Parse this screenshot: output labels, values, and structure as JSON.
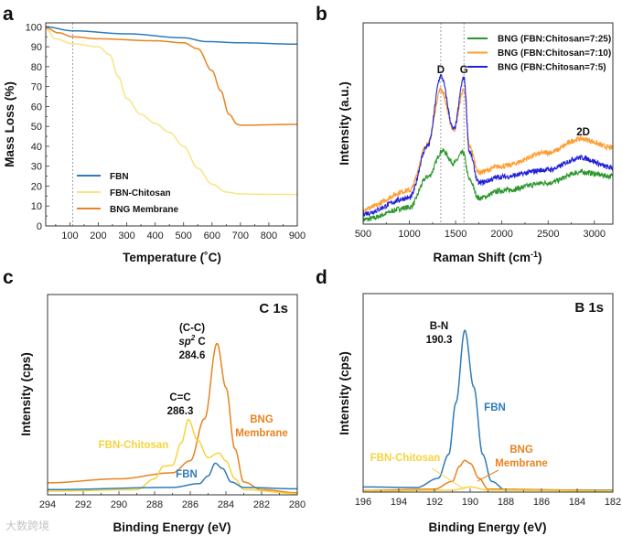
{
  "watermark": "大数跨境",
  "colors": {
    "fbn": "#2e7cb9",
    "fbn_chitosan_a": "#f7e582",
    "fbn_chitosan": "#f6d43c",
    "bng": "#e9831f",
    "raman_green": "#2b962b",
    "raman_orange": "#ff9c2f",
    "raman_blue": "#2121d8",
    "text": "#111111"
  },
  "chart_data": [
    {
      "id": "a",
      "panel_label": "a",
      "type": "line",
      "xlabel": "Temperature (˚C)",
      "ylabel": "Mass Loss (%)",
      "xlim": [
        15,
        900
      ],
      "ylim": [
        0,
        102
      ],
      "xticks": [
        100,
        200,
        300,
        400,
        500,
        600,
        700,
        800,
        900
      ],
      "yticks": [
        0,
        10,
        20,
        30,
        40,
        50,
        60,
        70,
        80,
        90,
        100
      ],
      "ref_lines_x": [
        110
      ],
      "legend_position": "bottom-left",
      "series": [
        {
          "name": "FBN",
          "color_key": "fbn",
          "points": [
            [
              15,
              100
            ],
            [
              110,
              98
            ],
            [
              300,
              96.5
            ],
            [
              500,
              94.5
            ],
            [
              580,
              92.6
            ],
            [
              700,
              92
            ],
            [
              900,
              91.3
            ]
          ]
        },
        {
          "name": "FBN-Chitosan",
          "color_key": "fbn_chitosan_a",
          "points": [
            [
              15,
              99
            ],
            [
              50,
              94
            ],
            [
              110,
              91.5
            ],
            [
              200,
              90
            ],
            [
              240,
              86
            ],
            [
              270,
              75
            ],
            [
              300,
              64
            ],
            [
              350,
              56
            ],
            [
              400,
              51.5
            ],
            [
              450,
              47
            ],
            [
              500,
              40
            ],
            [
              550,
              29
            ],
            [
              600,
              21
            ],
            [
              650,
              17
            ],
            [
              700,
              16
            ],
            [
              900,
              15.8
            ]
          ]
        },
        {
          "name": "BNG Membrane",
          "color_key": "bng",
          "points": [
            [
              15,
              99.5
            ],
            [
              60,
              97
            ],
            [
              110,
              95
            ],
            [
              200,
              94
            ],
            [
              400,
              93
            ],
            [
              500,
              92
            ],
            [
              550,
              89
            ],
            [
              600,
              78
            ],
            [
              630,
              68
            ],
            [
              660,
              56
            ],
            [
              690,
              51
            ],
            [
              700,
              50.6
            ],
            [
              900,
              51
            ]
          ]
        }
      ]
    },
    {
      "id": "b",
      "panel_label": "b",
      "type": "line",
      "xlabel": "Raman Shift (cm",
      "xlabel_sup": "-1",
      "xlabel_end": ")",
      "ylabel": "Intensity (a.u.)",
      "xlim": [
        500,
        3200
      ],
      "ylim": [
        0,
        100
      ],
      "xticks": [
        500,
        1000,
        1500,
        2000,
        2500,
        3000
      ],
      "ref_lines_x": [
        1340,
        1590
      ],
      "legend_position": "top-right",
      "annotations": [
        {
          "text": "D",
          "x": 1340
        },
        {
          "text": "G",
          "x": 1590
        },
        {
          "text": "2D",
          "x": 2880
        }
      ],
      "series": [
        {
          "name": "BNG (FBN:Chitosan=7:25)",
          "color_key": "raman_green",
          "points": [
            [
              500,
              2.3
            ],
            [
              1000,
              8.3
            ],
            [
              1200,
              23.5
            ],
            [
              1360,
              36.4
            ],
            [
              1480,
              30.3
            ],
            [
              1580,
              35.6
            ],
            [
              1650,
              22
            ],
            [
              1750,
              12.9
            ],
            [
              2000,
              16.7
            ],
            [
              2500,
              20.5
            ],
            [
              2850,
              25.8
            ],
            [
              3200,
              23.8
            ]
          ]
        },
        {
          "name": "BNG (FBN:Chitosan=7:10)",
          "color_key": "raman_orange",
          "points": [
            [
              500,
              7.6
            ],
            [
              1000,
              16.7
            ],
            [
              1200,
              40
            ],
            [
              1340,
              67
            ],
            [
              1480,
              47
            ],
            [
              1590,
              67
            ],
            [
              1650,
              38.6
            ],
            [
              1750,
              25.8
            ],
            [
              2000,
              28.8
            ],
            [
              2500,
              35.6
            ],
            [
              2850,
              42.4
            ],
            [
              3200,
              37.9
            ]
          ]
        },
        {
          "name": "BNG (FBN:Chitosan=7:5)",
          "color_key": "raman_blue",
          "points": [
            [
              500,
              5.3
            ],
            [
              1000,
              13
            ],
            [
              1200,
              39
            ],
            [
              1340,
              73.5
            ],
            [
              1480,
              47
            ],
            [
              1590,
              72.7
            ],
            [
              1650,
              35.6
            ],
            [
              1750,
              20.5
            ],
            [
              2000,
              23.5
            ],
            [
              2500,
              27
            ],
            [
              2850,
              33
            ],
            [
              3200,
              28
            ]
          ]
        }
      ]
    },
    {
      "id": "c",
      "panel_label": "c",
      "type": "line",
      "title": "C 1s",
      "xlabel": "Binding Energy (eV)",
      "ylabel": "Intensity (cps)",
      "xlim": [
        294,
        280
      ],
      "ylim": [
        0,
        100
      ],
      "xticks": [
        294,
        292,
        290,
        288,
        286,
        284,
        282,
        280
      ],
      "annotations": [
        {
          "lines": [
            "(C-C)"
          ]
        },
        {
          "sp2": {
            "italic": "sp",
            "sup": "2",
            "rest": " C"
          }
        },
        {
          "lines": [
            "284.6"
          ]
        },
        {
          "lines": [
            "C=C",
            "286.3"
          ]
        }
      ],
      "series": [
        {
          "name": "BNG Membrane",
          "label_lines": [
            "BNG",
            "Membrane"
          ],
          "color_key": "bng",
          "points": [
            [
              294,
              6
            ],
            [
              290,
              8
            ],
            [
              287,
              11
            ],
            [
              286,
              17
            ],
            [
              285.2,
              38
            ],
            [
              284.5,
              75.6
            ],
            [
              284,
              53.6
            ],
            [
              283.5,
              23
            ],
            [
              283,
              6.4
            ],
            [
              282,
              2.6
            ],
            [
              280,
              1
            ]
          ]
        },
        {
          "name": "FBN-Chitosan",
          "label_lines": [
            "FBN-Chitosan"
          ],
          "color_key": "fbn_chitosan",
          "points": [
            [
              294,
              1.8
            ],
            [
              289,
              2.6
            ],
            [
              288,
              8
            ],
            [
              287.5,
              14.3
            ],
            [
              287,
              14.8
            ],
            [
              286.5,
              26
            ],
            [
              286.1,
              37.6
            ],
            [
              285.6,
              27.4
            ],
            [
              285,
              18.6
            ],
            [
              284.4,
              20.9
            ],
            [
              284,
              17
            ],
            [
              283.5,
              8
            ],
            [
              283,
              2.6
            ],
            [
              280,
              0.6
            ]
          ]
        },
        {
          "name": "FBN",
          "label_lines": [
            "FBN"
          ],
          "color_key": "fbn",
          "points": [
            [
              294,
              2.6
            ],
            [
              287,
              3.7
            ],
            [
              285.5,
              5.6
            ],
            [
              285,
              9.4
            ],
            [
              284.6,
              15.8
            ],
            [
              284.2,
              13.2
            ],
            [
              283.7,
              6.4
            ],
            [
              283,
              3.7
            ],
            [
              280,
              3
            ]
          ]
        }
      ]
    },
    {
      "id": "d",
      "panel_label": "d",
      "type": "line",
      "title": "B 1s",
      "xlabel": "Binding Energy (eV)",
      "ylabel": "Intensity (cps)",
      "xlim": [
        196,
        182
      ],
      "ylim": [
        0,
        100
      ],
      "xticks": [
        196,
        194,
        192,
        190,
        188,
        186,
        184,
        182
      ],
      "annotations": [
        {
          "lines": [
            "B-N",
            "190.3"
          ]
        }
      ],
      "series": [
        {
          "name": "FBN",
          "label_lines": [
            "FBN"
          ],
          "color_key": "fbn",
          "points": [
            [
              196,
              2.6
            ],
            [
              193,
              2.3
            ],
            [
              191.8,
              6.9
            ],
            [
              191.2,
              19
            ],
            [
              190.8,
              45
            ],
            [
              190.3,
              81.5
            ],
            [
              189.8,
              53
            ],
            [
              189.3,
              19
            ],
            [
              188.8,
              5.4
            ],
            [
              188,
              1
            ],
            [
              182,
              1
            ]
          ]
        },
        {
          "name": "BNG Membrane",
          "label_lines": [
            "BNG",
            "Membrane"
          ],
          "color_key": "bng",
          "points": [
            [
              196,
              0.8
            ],
            [
              192,
              1.5
            ],
            [
              191,
              5.4
            ],
            [
              190.6,
              13
            ],
            [
              190.3,
              16
            ],
            [
              190,
              14.5
            ],
            [
              189.5,
              6.9
            ],
            [
              189,
              1.5
            ],
            [
              182,
              0.8
            ]
          ]
        },
        {
          "name": "FBN-Chitosan",
          "label_lines": [
            "FBN-Chitosan"
          ],
          "color_key": "fbn_chitosan",
          "points": [
            [
              196,
              0.5
            ],
            [
              191,
              1
            ],
            [
              190,
              2.6
            ],
            [
              189,
              1
            ],
            [
              182,
              0.5
            ]
          ]
        }
      ]
    }
  ]
}
